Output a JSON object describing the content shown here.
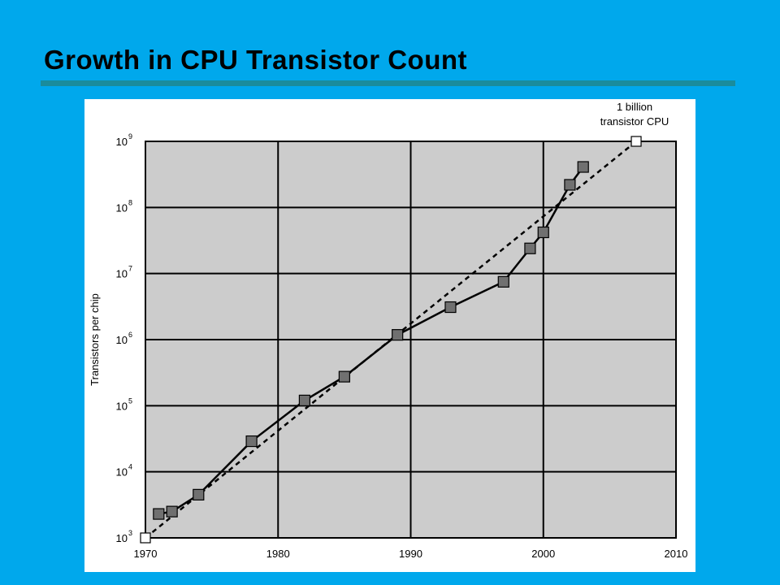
{
  "slide": {
    "title": "Growth in CPU Transistor Count",
    "accent_color": "#00a8ec",
    "rule_color": "#1a8c9c"
  },
  "chart_data": {
    "type": "line",
    "y_scale": "log10",
    "ylabel": "Transistors per chip",
    "xlabel": "",
    "xlim": [
      1970,
      2010
    ],
    "ylim": [
      1000,
      1000000000
    ],
    "x_ticks": [
      "1970",
      "1980",
      "1990",
      "2000",
      "2010"
    ],
    "y_ticks": [
      {
        "base": "10",
        "exp": "3"
      },
      {
        "base": "10",
        "exp": "4"
      },
      {
        "base": "10",
        "exp": "5"
      },
      {
        "base": "10",
        "exp": "6"
      },
      {
        "base": "10",
        "exp": "7"
      },
      {
        "base": "10",
        "exp": "8"
      },
      {
        "base": "10",
        "exp": "9"
      }
    ],
    "grid": true,
    "plot_background": "#cccccc",
    "series": [
      {
        "style": "solid-with-filled-squares",
        "color": "#000000",
        "marker_color": "#707070",
        "points": [
          [
            1971,
            2300
          ],
          [
            1972,
            2500
          ],
          [
            1974,
            4500
          ],
          [
            1978,
            29000
          ],
          [
            1982,
            120000
          ],
          [
            1985,
            275000
          ],
          [
            1989,
            1180000
          ],
          [
            1993,
            3100000
          ],
          [
            1997,
            7500000
          ],
          [
            1999,
            24000000
          ],
          [
            2000,
            42000000
          ],
          [
            2002,
            220000000
          ],
          [
            2003,
            410000000
          ]
        ]
      },
      {
        "style": "dashed-trend",
        "color": "#000000",
        "marker_color": "#ffffff",
        "points": [
          [
            1970,
            1000
          ],
          [
            2007,
            1000000000
          ]
        ]
      }
    ],
    "annotations": [
      {
        "text_lines": [
          "1 billion",
          "transistor CPU"
        ],
        "x": 2007,
        "y": 1000000000
      }
    ]
  }
}
